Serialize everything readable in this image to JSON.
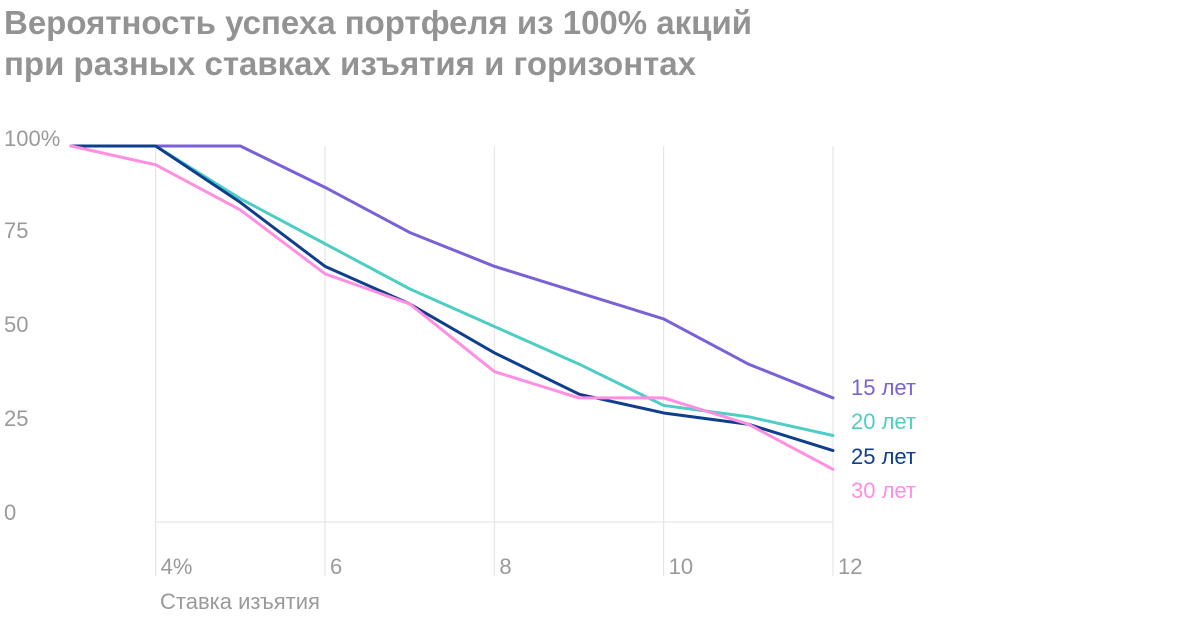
{
  "chart_data": {
    "type": "line",
    "title": "Вероятность успеха портфеля из 100% акций",
    "subtitle": "при разных ставках изъятия и горизонтах",
    "xlabel": "Ставка изъятия",
    "ylabel": "",
    "x": [
      3,
      4,
      5,
      6,
      7,
      8,
      9,
      10,
      11,
      12
    ],
    "x_tick_labels": [
      {
        "x": 4,
        "label": "4%"
      },
      {
        "x": 6,
        "label": "6"
      },
      {
        "x": 8,
        "label": "8"
      },
      {
        "x": 10,
        "label": "10"
      },
      {
        "x": 12,
        "label": "12"
      }
    ],
    "y_tick_labels": [
      {
        "y": 100,
        "label": "100%"
      },
      {
        "y": 75,
        "label": "75"
      },
      {
        "y": 50,
        "label": "50"
      },
      {
        "y": 25,
        "label": "25"
      },
      {
        "y": 0,
        "label": "0"
      }
    ],
    "xlim": [
      3,
      12
    ],
    "ylim": [
      0,
      100
    ],
    "grid": "vertical",
    "legend_placement": "right-end",
    "series": [
      {
        "name": "15 лет",
        "color": "#7b61d6",
        "values": [
          100,
          100,
          100,
          89,
          77,
          68,
          61,
          54,
          42,
          33
        ]
      },
      {
        "name": "20 лет",
        "color": "#4ecdc4",
        "values": [
          100,
          100,
          86,
          74,
          62,
          52,
          42,
          31,
          28,
          23
        ]
      },
      {
        "name": "25 лет",
        "color": "#0f3f8c",
        "values": [
          100,
          100,
          85,
          68,
          58,
          45,
          34,
          29,
          26,
          19
        ]
      },
      {
        "name": "30 лет",
        "color": "#ff8fe0",
        "values": [
          100,
          95,
          83,
          66,
          58,
          40,
          33,
          33,
          26,
          14
        ]
      }
    ]
  }
}
